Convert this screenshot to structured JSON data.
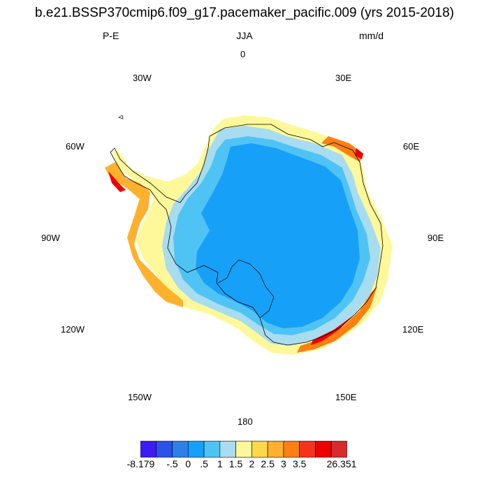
{
  "title": "b.e21.BSSP370cmip6.f09_g17.pacemaker_pacific.009 (yrs 2015-2018)",
  "left_label": "P-E",
  "center_label": "JJA",
  "right_label": "mm/d",
  "longitude_labels": {
    "lon_0": "0",
    "lon_30e": "30E",
    "lon_60e": "60E",
    "lon_90e": "90E",
    "lon_120e": "120E",
    "lon_150e": "150E",
    "lon_180": "180",
    "lon_150w": "150W",
    "lon_120w": "120W",
    "lon_90w": "90W",
    "lon_60w": "60W",
    "lon_30w": "30W"
  },
  "colorbar": {
    "colors": [
      "#3c1cf0",
      "#2d52e6",
      "#2f7fe8",
      "#17a0f8",
      "#4fc4f4",
      "#a8dcf0",
      "#fef89a",
      "#fed84a",
      "#ffb12e",
      "#ff7f10",
      "#f7321a",
      "#ef0000",
      "#d82b2b"
    ],
    "labels": [
      "-8.179",
      "-.5",
      "0",
      ".5",
      "1",
      "1.5",
      "2",
      "2.5",
      "3",
      "3.5",
      "26.351"
    ]
  }
}
